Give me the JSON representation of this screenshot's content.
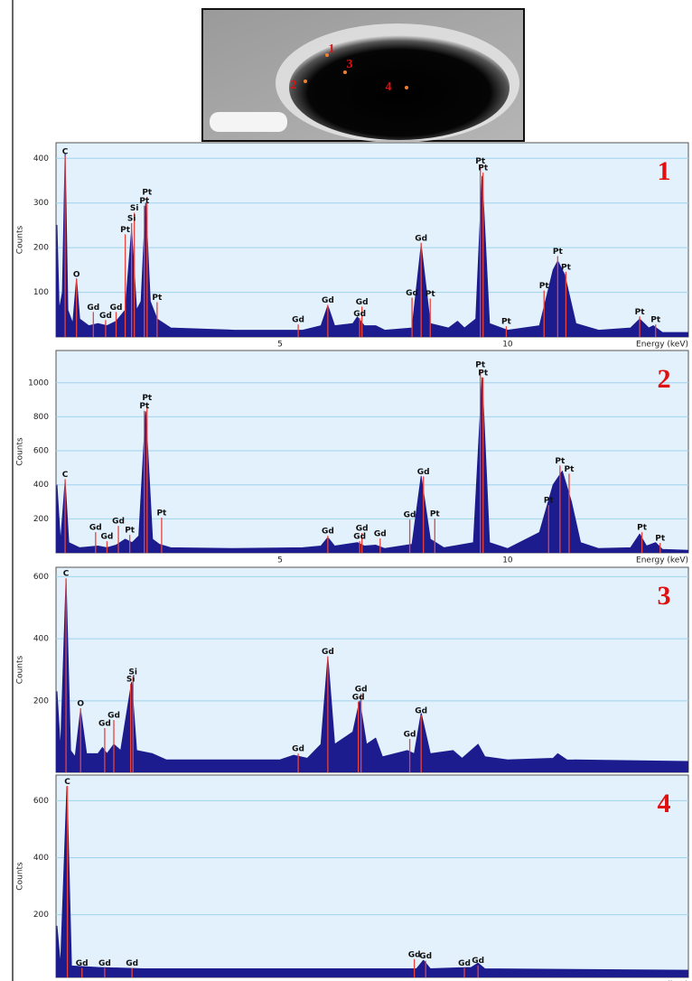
{
  "image": {
    "markers": [
      "1",
      "3",
      "2",
      "4"
    ]
  },
  "chart_data": [
    {
      "type": "area",
      "panel_label": "1",
      "ylabel": "Counts",
      "xlabel": "Energy (keV)",
      "color": "#1c1c8f",
      "line_color": "#e8433c",
      "grid": true,
      "xlim": [
        0.08,
        13.97
      ],
      "xticks": [
        5,
        10
      ],
      "ylim": [
        0,
        435
      ],
      "yticks": [
        100,
        200,
        300,
        400
      ],
      "x": [
        0.08,
        0.1,
        0.15,
        0.22,
        0.28,
        0.34,
        0.45,
        0.53,
        0.6,
        0.8,
        1.0,
        1.2,
        1.4,
        1.6,
        1.74,
        1.85,
        1.95,
        2.05,
        2.15,
        2.3,
        2.6,
        4.0,
        5.5,
        5.9,
        6.05,
        6.2,
        6.6,
        6.7,
        6.85,
        7.1,
        7.3,
        7.9,
        8.1,
        8.3,
        8.7,
        8.9,
        9.05,
        9.3,
        9.44,
        9.6,
        10.0,
        10.7,
        11.0,
        11.1,
        11.25,
        11.5,
        12.0,
        12.7,
        12.9,
        13.1,
        13.2,
        13.4,
        13.97
      ],
      "values": [
        0,
        250,
        60,
        100,
        410,
        60,
        30,
        130,
        40,
        25,
        30,
        25,
        35,
        60,
        240,
        60,
        80,
        300,
        80,
        40,
        20,
        15,
        15,
        25,
        70,
        25,
        30,
        45,
        25,
        25,
        15,
        20,
        205,
        30,
        20,
        35,
        20,
        40,
        360,
        30,
        15,
        25,
        150,
        170,
        140,
        30,
        15,
        20,
        40,
        20,
        25,
        10,
        10
      ],
      "annotations": [
        {
          "label": "C",
          "x": 0.28,
          "y": 415
        },
        {
          "label": "O",
          "x": 0.53,
          "y": 140
        },
        {
          "label": "Gd",
          "x": 0.9,
          "y": 66
        },
        {
          "label": "Gd",
          "x": 1.17,
          "y": 48
        },
        {
          "label": "Gd",
          "x": 1.4,
          "y": 66
        },
        {
          "label": "Pt",
          "x": 1.6,
          "y": 240
        },
        {
          "label": "Si",
          "x": 1.74,
          "y": 265
        },
        {
          "label": "Si",
          "x": 1.8,
          "y": 288
        },
        {
          "label": "Pt",
          "x": 2.02,
          "y": 304
        },
        {
          "label": "Pt",
          "x": 2.08,
          "y": 324
        },
        {
          "label": "Pt",
          "x": 2.3,
          "y": 88
        },
        {
          "label": "Gd",
          "x": 5.4,
          "y": 38
        },
        {
          "label": "Gd",
          "x": 6.05,
          "y": 82
        },
        {
          "label": "Gd",
          "x": 6.75,
          "y": 52
        },
        {
          "label": "Gd",
          "x": 6.8,
          "y": 78
        },
        {
          "label": "Gd",
          "x": 7.9,
          "y": 98
        },
        {
          "label": "Gd",
          "x": 8.1,
          "y": 221
        },
        {
          "label": "Pt",
          "x": 8.3,
          "y": 96
        },
        {
          "label": "Pt",
          "x": 9.4,
          "y": 394
        },
        {
          "label": "Pt",
          "x": 9.46,
          "y": 378
        },
        {
          "label": "Pt",
          "x": 9.97,
          "y": 34
        },
        {
          "label": "Pt",
          "x": 10.8,
          "y": 114
        },
        {
          "label": "Pt",
          "x": 11.1,
          "y": 191
        },
        {
          "label": "Pt",
          "x": 11.28,
          "y": 156
        },
        {
          "label": "Pt",
          "x": 12.9,
          "y": 56
        },
        {
          "label": "Pt",
          "x": 13.25,
          "y": 38
        }
      ]
    },
    {
      "type": "area",
      "panel_label": "2",
      "ylabel": "Counts",
      "xlabel": "Energy (keV)",
      "color": "#1c1c8f",
      "line_color": "#e8433c",
      "grid": true,
      "xlim": [
        0.08,
        13.97
      ],
      "xticks": [
        5,
        10
      ],
      "ylim": [
        0,
        1190
      ],
      "yticks": [
        200,
        400,
        600,
        800,
        1000
      ],
      "x": [
        0.08,
        0.1,
        0.18,
        0.28,
        0.36,
        0.6,
        1.0,
        1.2,
        1.4,
        1.6,
        1.75,
        1.9,
        2.05,
        2.2,
        2.35,
        2.6,
        4.0,
        5.5,
        5.9,
        6.05,
        6.2,
        6.7,
        6.85,
        7.1,
        7.3,
        7.9,
        8.1,
        8.3,
        8.6,
        9.25,
        9.44,
        9.6,
        10.0,
        10.7,
        11.0,
        11.2,
        11.4,
        11.6,
        12.0,
        12.7,
        12.9,
        13.05,
        13.25,
        13.4,
        13.97
      ],
      "values": [
        0,
        400,
        60,
        420,
        60,
        30,
        40,
        30,
        45,
        80,
        60,
        100,
        830,
        80,
        50,
        30,
        25,
        30,
        40,
        90,
        40,
        60,
        40,
        45,
        25,
        50,
        450,
        80,
        30,
        60,
        1030,
        60,
        25,
        120,
        400,
        480,
        300,
        60,
        25,
        30,
        110,
        40,
        60,
        20,
        15
      ],
      "annotations": [
        {
          "label": "C",
          "x": 0.28,
          "y": 460
        },
        {
          "label": "Gd",
          "x": 0.95,
          "y": 148
        },
        {
          "label": "Gd",
          "x": 1.2,
          "y": 95
        },
        {
          "label": "Gd",
          "x": 1.45,
          "y": 185
        },
        {
          "label": "Pt",
          "x": 1.7,
          "y": 132
        },
        {
          "label": "Pt",
          "x": 2.02,
          "y": 862
        },
        {
          "label": "Pt",
          "x": 2.08,
          "y": 910
        },
        {
          "label": "Pt",
          "x": 2.4,
          "y": 233
        },
        {
          "label": "Gd",
          "x": 6.05,
          "y": 127
        },
        {
          "label": "Gd",
          "x": 6.75,
          "y": 95
        },
        {
          "label": "Gd",
          "x": 6.8,
          "y": 143
        },
        {
          "label": "Gd",
          "x": 7.2,
          "y": 111
        },
        {
          "label": "Gd",
          "x": 7.85,
          "y": 222
        },
        {
          "label": "Gd",
          "x": 8.15,
          "y": 476
        },
        {
          "label": "Pt",
          "x": 8.4,
          "y": 228
        },
        {
          "label": "Pt",
          "x": 9.4,
          "y": 1105
        },
        {
          "label": "Pt",
          "x": 9.46,
          "y": 1058
        },
        {
          "label": "Pt",
          "x": 10.9,
          "y": 307
        },
        {
          "label": "Pt",
          "x": 11.15,
          "y": 540
        },
        {
          "label": "Pt",
          "x": 11.35,
          "y": 492
        },
        {
          "label": "Pt",
          "x": 12.95,
          "y": 148
        },
        {
          "label": "Pt",
          "x": 13.35,
          "y": 85
        }
      ]
    },
    {
      "type": "area",
      "panel_label": "3",
      "ylabel": "Counts",
      "xlabel": "Energy (keV)",
      "color": "#1c1c8f",
      "line_color": "#e8433c",
      "grid": true,
      "xlim": [
        0.08,
        13.97
      ],
      "xticks": [
        5,
        10
      ],
      "ylim": [
        -30,
        630
      ],
      "yticks": [
        200,
        400,
        600
      ],
      "x": [
        0.08,
        0.1,
        0.18,
        0.3,
        0.4,
        0.5,
        0.62,
        0.75,
        1.0,
        1.1,
        1.2,
        1.35,
        1.5,
        1.74,
        1.85,
        2.2,
        2.5,
        5.0,
        5.3,
        5.6,
        5.9,
        6.05,
        6.2,
        6.6,
        6.75,
        6.9,
        7.1,
        7.25,
        7.8,
        7.95,
        8.1,
        8.3,
        8.8,
        9.0,
        9.35,
        9.5,
        10.0,
        11.0,
        11.1,
        11.3,
        13.97
      ],
      "values": [
        0,
        230,
        40,
        590,
        40,
        20,
        170,
        30,
        30,
        50,
        30,
        60,
        40,
        260,
        40,
        30,
        10,
        10,
        25,
        15,
        60,
        340,
        60,
        100,
        200,
        60,
        80,
        20,
        40,
        30,
        160,
        30,
        40,
        15,
        60,
        20,
        10,
        15,
        30,
        10,
        5
      ],
      "annotations": [
        {
          "label": "C",
          "x": 0.3,
          "y": 609
        },
        {
          "label": "O",
          "x": 0.62,
          "y": 191
        },
        {
          "label": "Gd",
          "x": 1.15,
          "y": 127
        },
        {
          "label": "Gd",
          "x": 1.35,
          "y": 153
        },
        {
          "label": "Si",
          "x": 1.72,
          "y": 270
        },
        {
          "label": "Si",
          "x": 1.77,
          "y": 293
        },
        {
          "label": "Gd",
          "x": 5.4,
          "y": 45
        },
        {
          "label": "Gd",
          "x": 6.05,
          "y": 358
        },
        {
          "label": "Gd",
          "x": 6.72,
          "y": 212
        },
        {
          "label": "Gd",
          "x": 6.78,
          "y": 238
        },
        {
          "label": "Gd",
          "x": 7.85,
          "y": 92
        },
        {
          "label": "Gd",
          "x": 8.1,
          "y": 168
        }
      ]
    },
    {
      "type": "area",
      "panel_label": "4",
      "ylabel": "Counts",
      "xlabel": "Energy (keV)",
      "color": "#1c1c8f",
      "line_color": "#e8433c",
      "grid": true,
      "xlim": [
        0.08,
        13.97
      ],
      "xticks": [
        5,
        10
      ],
      "ylim": [
        -20,
        690
      ],
      "yticks": [
        200,
        400,
        600
      ],
      "x": [
        0.08,
        0.1,
        0.18,
        0.32,
        0.42,
        1.0,
        2.0,
        8.0,
        8.15,
        8.3,
        9.2,
        9.35,
        9.5,
        13.97
      ],
      "values": [
        0,
        160,
        20,
        650,
        20,
        15,
        10,
        10,
        40,
        10,
        15,
        30,
        10,
        5
      ],
      "annotations": [
        {
          "label": "C",
          "x": 0.33,
          "y": 667
        },
        {
          "label": "Gd",
          "x": 0.65,
          "y": 29
        },
        {
          "label": "Gd",
          "x": 1.15,
          "y": 29
        },
        {
          "label": "Gd",
          "x": 1.75,
          "y": 29
        },
        {
          "label": "Gd",
          "x": 7.95,
          "y": 60
        },
        {
          "label": "Gd",
          "x": 8.2,
          "y": 54
        },
        {
          "label": "Gd",
          "x": 9.05,
          "y": 29
        },
        {
          "label": "Gd",
          "x": 9.35,
          "y": 38
        }
      ]
    }
  ]
}
